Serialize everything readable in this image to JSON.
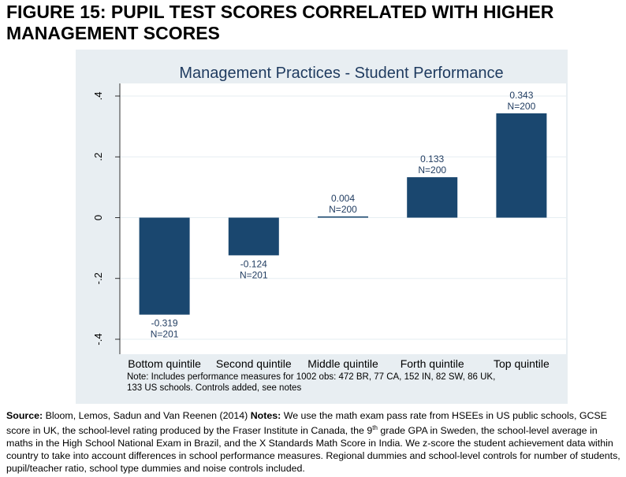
{
  "figure_title": "FIGURE 15: PUPIL TEST SCORES CORRELATED WITH HIGHER MANAGEMENT SCORES",
  "chart_data": {
    "type": "bar",
    "title": "Management Practices - Student Performance",
    "categories": [
      "Bottom quintile",
      "Second quintile",
      "Middle quintile",
      "Forth quintile",
      "Top quintile"
    ],
    "values": [
      -0.319,
      -0.124,
      0.004,
      0.133,
      0.343
    ],
    "value_labels": [
      "-0.319",
      "-0.124",
      "0.004",
      "0.133",
      "0.343"
    ],
    "n_labels": [
      "N=201",
      "N=201",
      "N=200",
      "N=200",
      "N=200"
    ],
    "yticks": [
      -0.4,
      -0.2,
      0,
      0.2,
      0.4
    ],
    "ytick_labels": [
      "-.4",
      "-.2",
      "0",
      ".2",
      ".4"
    ],
    "ylim": [
      -0.4,
      0.4
    ],
    "xlabel": "",
    "ylabel": "",
    "grid": true,
    "bar_color": "#1a476f",
    "note_lines": [
      "Note: Includes performance measures for 1002 obs: 472 BR, 77 CA, 152 IN, 82 SW, 86 UK,",
      "133 US schools. Controls added, see notes"
    ]
  },
  "source": {
    "source_label": "Source:",
    "source_text": " Bloom, Lemos, Sadun and Van Reenen (2014) ",
    "notes_label": "Notes:",
    "notes_text_1": " We use the math exam pass rate from HSEEs in US public schools, GCSE score in UK, the school-level rating produced by the Fraser Institute in Canada, the 9",
    "notes_sup": "th",
    "notes_text_2": " grade GPA in Sweden, the school-level average in maths in the High School National Exam in Brazil, and the X Standards Math Score in India. We  z-score the student achievement data within country to take into account differences in school performance measures. Regional dummies and school-level controls for number of students, pupil/teacher ratio, school type dummies and noise controls included."
  }
}
